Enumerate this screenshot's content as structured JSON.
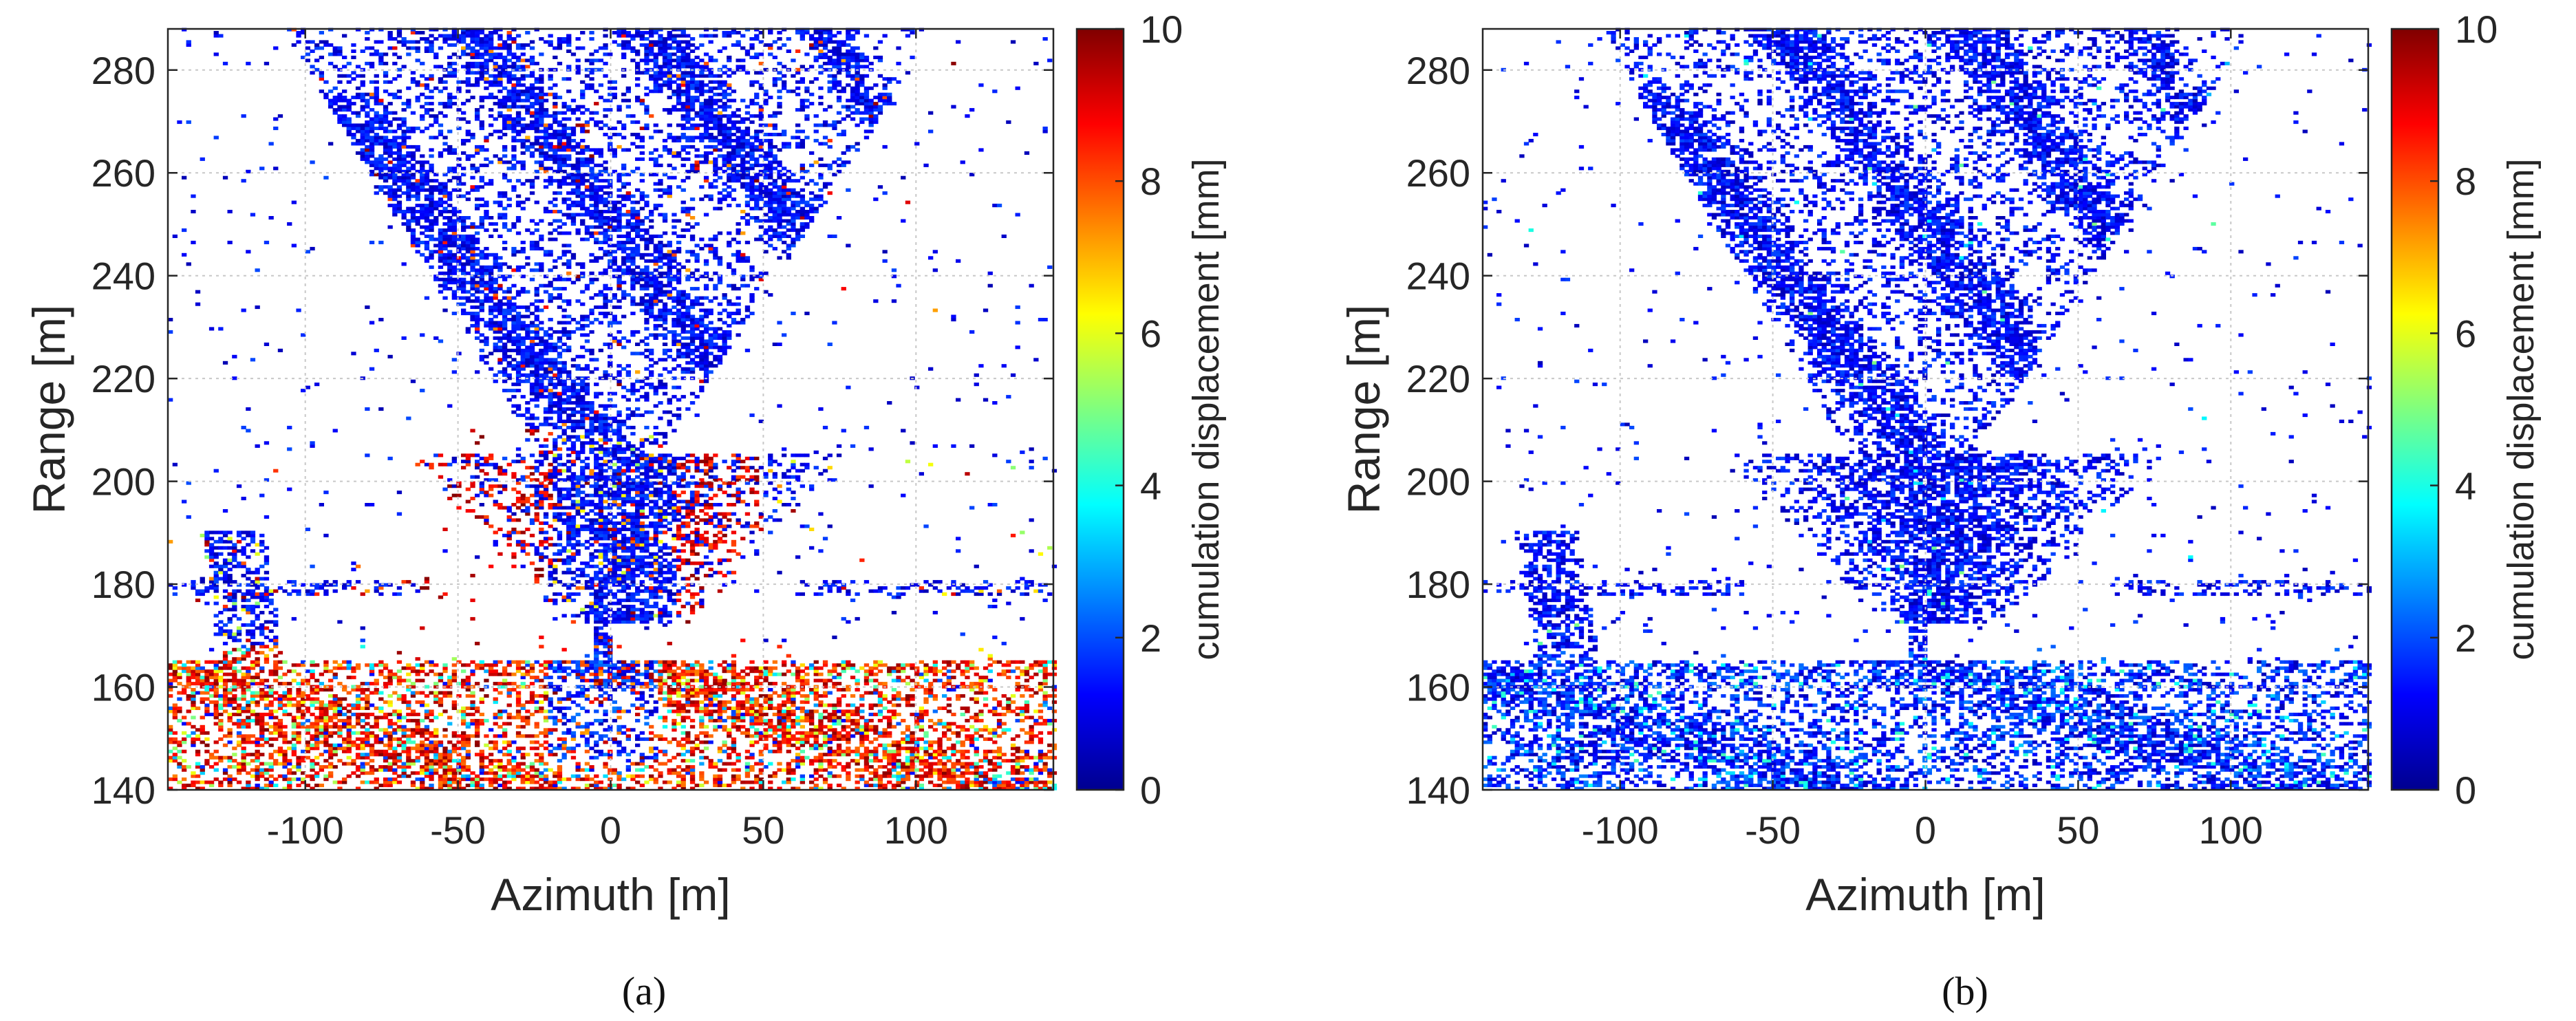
{
  "chart_data": [
    {
      "type": "heatmap",
      "caption": "(a)",
      "xlabel": "Azimuth [m]",
      "ylabel": "Range [m]",
      "xlim": [
        -145,
        145
      ],
      "ylim": [
        140,
        288
      ],
      "xticks": [
        -100,
        -50,
        0,
        50,
        100
      ],
      "xtick_labels": [
        "-100",
        "-50",
        "0",
        "50",
        "100"
      ],
      "yticks": [
        140,
        160,
        180,
        200,
        220,
        240,
        260,
        280
      ],
      "ytick_labels": [
        "140",
        "160",
        "180",
        "200",
        "220",
        "240",
        "260",
        "280"
      ],
      "grid": true,
      "colorbar": {
        "label": "cumulation displacement [mm]",
        "range": [
          0,
          10
        ],
        "ticks": [
          0,
          2,
          4,
          6,
          8,
          10
        ],
        "tick_labels": [
          "0",
          "2",
          "4",
          "6",
          "8",
          "10"
        ],
        "colormap": "jet"
      },
      "colors": {
        "low": "#00008f",
        "mid_low": "#0050ff",
        "mid": "#40ffbf",
        "mid_high": "#ffcc00",
        "high": "#8f0000"
      },
      "description_values": {
        "typical_displacement_upper_region_mm": 1,
        "typical_displacement_lower_region_mm": 9
      }
    },
    {
      "type": "heatmap",
      "caption": "(b)",
      "xlabel": "Azimuth [m]",
      "ylabel": "Range [m]",
      "xlim": [
        -145,
        145
      ],
      "ylim": [
        140,
        288
      ],
      "xticks": [
        -100,
        -50,
        0,
        50,
        100
      ],
      "xtick_labels": [
        "-100",
        "-50",
        "0",
        "50",
        "100"
      ],
      "yticks": [
        140,
        160,
        180,
        200,
        220,
        240,
        260,
        280
      ],
      "ytick_labels": [
        "140",
        "160",
        "180",
        "200",
        "220",
        "240",
        "260",
        "280"
      ],
      "grid": true,
      "colorbar": {
        "label": "cumulation displacement [mm]",
        "range": [
          0,
          10
        ],
        "ticks": [
          0,
          2,
          4,
          6,
          8,
          10
        ],
        "tick_labels": [
          "0",
          "2",
          "4",
          "6",
          "8",
          "10"
        ],
        "colormap": "jet"
      },
      "colors": {
        "low": "#00008f",
        "mid_low": "#0050ff",
        "mid": "#40ffbf",
        "mid_high": "#ffcc00",
        "high": "#8f0000"
      },
      "description_values": {
        "typical_displacement_upper_region_mm": 1,
        "typical_displacement_lower_region_mm": 2
      }
    }
  ]
}
